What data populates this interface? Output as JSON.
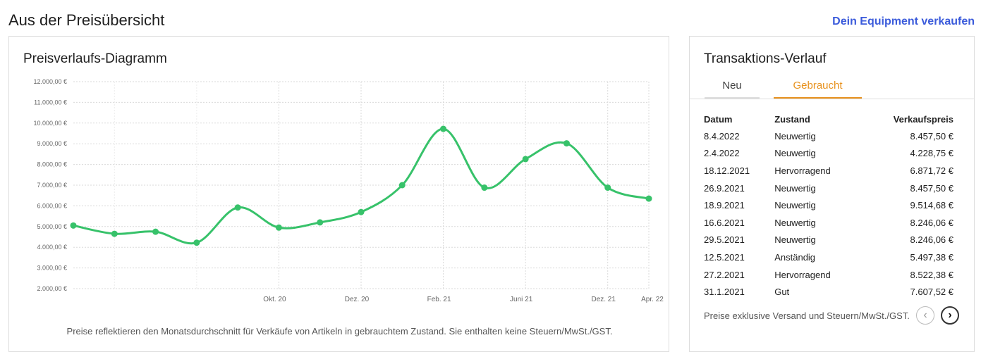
{
  "header": {
    "title": "Aus der Preisübersicht",
    "sell_link": "Dein Equipment verkaufen"
  },
  "chart_card": {
    "title": "Preisverlaufs-Diagramm",
    "note": "Preise reflektieren den Monatsdurchschnitt für Verkäufe von Artikeln in gebrauchtem Zustand. Sie enthalten keine Steuern/MwSt./GST."
  },
  "chart_data": {
    "type": "line",
    "title": "",
    "xlabel": "",
    "ylabel": "",
    "x_tick_labels": [
      "Okt. 20",
      "Dez. 20",
      "Feb. 21",
      "Juni 21",
      "Dez. 21",
      "Apr. 22"
    ],
    "y_tick_labels": [
      "2.000,00 €",
      "3.000,00 €",
      "4.000,00 €",
      "5.000,00 €",
      "6.000,00 €",
      "7.000,00 €",
      "8.000,00 €",
      "9.000,00 €",
      "10.000,00 €",
      "11.000,00 €",
      "12.000,00 €"
    ],
    "ylim": [
      2000,
      12000
    ],
    "grid": true,
    "color": "#37c26a",
    "series": [
      {
        "values": [
          5050,
          4650,
          4750,
          4220,
          5920,
          4950,
          5200,
          5700,
          7000,
          9720,
          6880,
          8260,
          9020,
          6880,
          6350
        ]
      }
    ]
  },
  "transactions": {
    "title": "Transaktions-Verlauf",
    "tabs": [
      {
        "label": "Neu",
        "active": false
      },
      {
        "label": "Gebraucht",
        "active": true
      }
    ],
    "columns": [
      "Datum",
      "Zustand",
      "Verkaufspreis"
    ],
    "rows": [
      [
        "8.4.2022",
        "Neuwertig",
        "8.457,50 €"
      ],
      [
        "2.4.2022",
        "Neuwertig",
        "4.228,75 €"
      ],
      [
        "18.12.2021",
        "Hervorragend",
        "6.871,72 €"
      ],
      [
        "26.9.2021",
        "Neuwertig",
        "8.457,50 €"
      ],
      [
        "18.9.2021",
        "Neuwertig",
        "9.514,68 €"
      ],
      [
        "16.6.2021",
        "Neuwertig",
        "8.246,06 €"
      ],
      [
        "29.5.2021",
        "Neuwertig",
        "8.246,06 €"
      ],
      [
        "12.5.2021",
        "Anständig",
        "5.497,38 €"
      ],
      [
        "27.2.2021",
        "Hervorragend",
        "8.522,38 €"
      ],
      [
        "31.1.2021",
        "Gut",
        "7.607,52 €"
      ]
    ],
    "note": "Preise exklusive Versand und Steuern/MwSt./GST.",
    "prev_icon": "‹",
    "next_icon": "›"
  }
}
